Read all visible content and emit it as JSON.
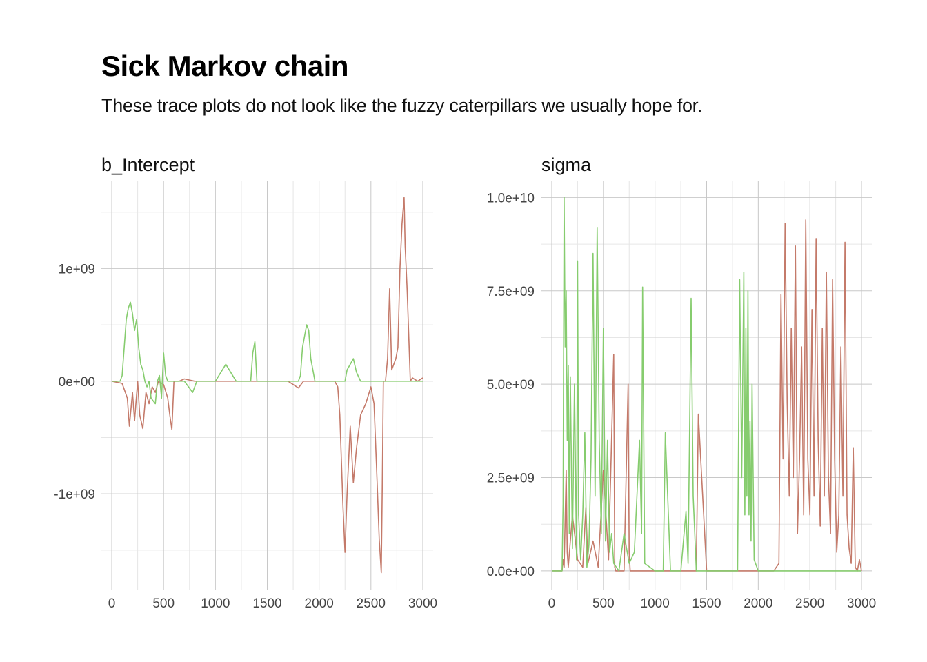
{
  "title": "Sick Markov chain",
  "subtitle": "These trace plots do not look like the fuzzy caterpillars we usually hope for.",
  "colors": {
    "chain_red": "#c47a6a",
    "chain_green": "#86cc6e",
    "grid_major": "#c8c8c8",
    "grid_minor": "#e6e6e6"
  },
  "chart_data": [
    {
      "type": "line",
      "title": "b_Intercept",
      "xlabel": "",
      "ylabel": "",
      "xlim": [
        -100,
        3100
      ],
      "ylim": [
        -1850000000,
        1780000000
      ],
      "x_ticks": [
        0,
        500,
        1000,
        1500,
        2000,
        2500,
        3000
      ],
      "x_tick_labels": [
        "0",
        "500",
        "1000",
        "1500",
        "2000",
        "2500",
        "3000"
      ],
      "y_ticks": [
        -1000000000,
        0,
        1000000000
      ],
      "y_tick_labels": [
        "-1e+09",
        "0e+00",
        "1e+09"
      ],
      "grid": true,
      "series": [
        {
          "color": "#c47a6a",
          "x": [
            0,
            100,
            150,
            170,
            200,
            220,
            250,
            270,
            300,
            330,
            360,
            390,
            420,
            450,
            500,
            540,
            560,
            580,
            600,
            650,
            700,
            800,
            900,
            1000,
            1100,
            1200,
            1300,
            1400,
            1500,
            1600,
            1700,
            1800,
            1850,
            1900,
            1950,
            2000,
            2050,
            2100,
            2150,
            2180,
            2200,
            2230,
            2250,
            2270,
            2300,
            2330,
            2360,
            2400,
            2450,
            2500,
            2530,
            2560,
            2580,
            2600,
            2610,
            2620,
            2640,
            2660,
            2680,
            2700,
            2720,
            2740,
            2760,
            2780,
            2800,
            2820,
            2830,
            2850,
            2880,
            2900,
            2950,
            3000
          ],
          "y": [
            0,
            -20000000,
            -150000000,
            -400000000,
            -100000000,
            -350000000,
            0,
            -300000000,
            -420000000,
            -100000000,
            -200000000,
            -50000000,
            -100000000,
            0,
            -30000000,
            -150000000,
            -300000000,
            -430000000,
            0,
            0,
            20000000,
            0,
            0,
            0,
            0,
            0,
            0,
            0,
            0,
            0,
            0,
            -60000000,
            0,
            0,
            0,
            0,
            0,
            0,
            0,
            -50000000,
            -300000000,
            -1100000000,
            -1520000000,
            -1000000000,
            -400000000,
            -900000000,
            -600000000,
            -300000000,
            -200000000,
            -50000000,
            -200000000,
            -900000000,
            -1400000000,
            -1700000000,
            -900000000,
            0,
            0,
            200000000,
            820000000,
            100000000,
            150000000,
            200000000,
            300000000,
            1000000000,
            1400000000,
            1630000000,
            1200000000,
            800000000,
            0,
            30000000,
            0,
            30000000
          ]
        },
        {
          "color": "#86cc6e",
          "x": [
            0,
            80,
            100,
            120,
            140,
            160,
            180,
            200,
            220,
            240,
            260,
            280,
            300,
            320,
            340,
            360,
            380,
            420,
            440,
            460,
            480,
            500,
            520,
            540,
            560,
            600,
            700,
            780,
            820,
            880,
            900,
            1000,
            1100,
            1200,
            1250,
            1300,
            1340,
            1360,
            1380,
            1400,
            1450,
            1500,
            1550,
            1600,
            1700,
            1800,
            1820,
            1840,
            1860,
            1880,
            1900,
            1920,
            1940,
            1960,
            2000,
            2100,
            2200,
            2250,
            2270,
            2300,
            2330,
            2360,
            2400,
            2450,
            2500,
            2600,
            2700,
            2800,
            3000
          ],
          "y": [
            0,
            0,
            50000000,
            300000000,
            550000000,
            650000000,
            700000000,
            600000000,
            450000000,
            550000000,
            300000000,
            150000000,
            100000000,
            0,
            -50000000,
            0,
            -150000000,
            -200000000,
            0,
            50000000,
            -150000000,
            250000000,
            50000000,
            0,
            0,
            0,
            0,
            -100000000,
            0,
            0,
            0,
            0,
            150000000,
            0,
            0,
            0,
            0,
            250000000,
            350000000,
            0,
            0,
            0,
            0,
            0,
            0,
            0,
            50000000,
            300000000,
            400000000,
            500000000,
            450000000,
            200000000,
            100000000,
            0,
            0,
            0,
            0,
            0,
            100000000,
            150000000,
            200000000,
            80000000,
            0,
            0,
            0,
            0,
            0,
            0,
            0
          ]
        }
      ]
    },
    {
      "type": "line",
      "title": "sigma",
      "xlabel": "",
      "ylabel": "",
      "xlim": [
        -100,
        3100
      ],
      "ylim": [
        -500000000,
        10450000000
      ],
      "x_ticks": [
        0,
        500,
        1000,
        1500,
        2000,
        2500,
        3000
      ],
      "x_tick_labels": [
        "0",
        "500",
        "1000",
        "1500",
        "2000",
        "2500",
        "3000"
      ],
      "y_ticks": [
        0,
        2500000000,
        5000000000,
        7500000000,
        10000000000
      ],
      "y_tick_labels": [
        "0.0e+00",
        "2.5e+09",
        "5.0e+09",
        "7.5e+09",
        "1.0e+10"
      ],
      "grid": true,
      "series": [
        {
          "color": "#c47a6a",
          "x": [
            0,
            100,
            110,
            120,
            140,
            150,
            160,
            200,
            250,
            300,
            330,
            350,
            400,
            450,
            500,
            550,
            600,
            610,
            620,
            700,
            740,
            750,
            760,
            800,
            900,
            1000,
            1100,
            1200,
            1300,
            1400,
            1420,
            1500,
            1600,
            1650,
            1700,
            1800,
            1900,
            2000,
            2100,
            2150,
            2200,
            2220,
            2240,
            2260,
            2280,
            2300,
            2320,
            2340,
            2360,
            2380,
            2400,
            2420,
            2440,
            2460,
            2480,
            2500,
            2520,
            2540,
            2560,
            2580,
            2600,
            2620,
            2640,
            2660,
            2680,
            2700,
            2720,
            2740,
            2760,
            2780,
            2800,
            2820,
            2840,
            2860,
            2880,
            2900,
            2920,
            2940,
            2960,
            2980,
            3000
          ],
          "y": [
            0,
            0,
            300000000,
            100000000,
            2700000000,
            500000000,
            100000000,
            1500000000,
            300000000,
            100000000,
            1700000000,
            200000000,
            800000000,
            100000000,
            2700000000,
            300000000,
            5800000000,
            100000000,
            0,
            0,
            5000000000,
            500000000,
            0,
            0,
            0,
            0,
            0,
            0,
            0,
            0,
            4200000000,
            0,
            0,
            0,
            0,
            0,
            0,
            0,
            0,
            0,
            200000000,
            7400000000,
            3000000000,
            9300000000,
            4500000000,
            2000000000,
            6500000000,
            2500000000,
            8700000000,
            1000000000,
            3000000000,
            6000000000,
            1500000000,
            9400000000,
            3000000000,
            1500000000,
            7000000000,
            2000000000,
            8900000000,
            3500000000,
            1200000000,
            6500000000,
            2000000000,
            8000000000,
            2500000000,
            1000000000,
            7800000000,
            3000000000,
            500000000,
            1500000000,
            6000000000,
            2000000000,
            8800000000,
            1500000000,
            600000000,
            200000000,
            3300000000,
            100000000,
            0,
            300000000,
            0
          ]
        },
        {
          "color": "#86cc6e",
          "x": [
            0,
            100,
            110,
            120,
            130,
            140,
            150,
            160,
            170,
            180,
            200,
            220,
            240,
            250,
            260,
            280,
            300,
            320,
            340,
            360,
            380,
            400,
            420,
            440,
            460,
            480,
            500,
            520,
            540,
            560,
            580,
            600,
            650,
            700,
            750,
            800,
            850,
            870,
            880,
            900,
            1000,
            1050,
            1080,
            1100,
            1150,
            1200,
            1250,
            1300,
            1320,
            1350,
            1370,
            1390,
            1400,
            1500,
            1600,
            1700,
            1800,
            1820,
            1840,
            1860,
            1870,
            1880,
            1890,
            1900,
            1910,
            1920,
            1930,
            1940,
            1960,
            2000,
            2100,
            2200,
            2300,
            2400,
            2500,
            2600,
            2700,
            2800,
            3000
          ],
          "y": [
            0,
            0,
            1800000000,
            10000000000,
            6000000000,
            7500000000,
            3500000000,
            5500000000,
            1000000000,
            5200000000,
            600000000,
            5000000000,
            300000000,
            8300000000,
            1500000000,
            300000000,
            1500000000,
            3700000000,
            100000000,
            700000000,
            3000000000,
            8500000000,
            2000000000,
            9200000000,
            3500000000,
            1000000000,
            6500000000,
            800000000,
            3500000000,
            500000000,
            1000000000,
            200000000,
            0,
            1000000000,
            200000000,
            500000000,
            3500000000,
            1000000000,
            7600000000,
            200000000,
            0,
            0,
            0,
            3700000000,
            0,
            0,
            0,
            1600000000,
            200000000,
            7300000000,
            2000000000,
            700000000,
            0,
            0,
            0,
            0,
            0,
            7800000000,
            2500000000,
            8000000000,
            1500000000,
            6500000000,
            2000000000,
            7500000000,
            1500000000,
            4000000000,
            800000000,
            5000000000,
            300000000,
            0,
            0,
            0,
            0,
            0,
            0,
            0,
            0,
            0,
            0
          ]
        }
      ]
    }
  ]
}
